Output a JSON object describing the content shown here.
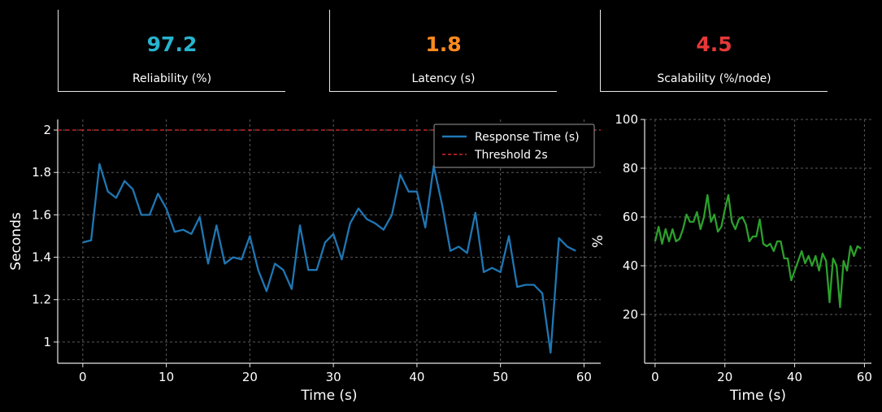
{
  "kpis": [
    {
      "value": "97.2",
      "label": "Reliability (%)",
      "color": "#27b4cf"
    },
    {
      "value": "1.8",
      "label": "Latency (s)",
      "color": "#ff8a1f"
    },
    {
      "value": "4.5",
      "label": "Scalability (%/node)",
      "color": "#e63838"
    }
  ],
  "chart_data": [
    {
      "type": "line",
      "xlabel": "Time (s)",
      "ylabel": "Seconds",
      "xlim": [
        -3,
        62
      ],
      "ylim": [
        0.9,
        2.05
      ],
      "xticks": [
        0,
        10,
        20,
        30,
        40,
        50,
        60
      ],
      "yticks": [
        1.0,
        1.2,
        1.4,
        1.6,
        1.8,
        2.0
      ],
      "grid": true,
      "legend": "top-right",
      "series": [
        {
          "name": "Response Time (s)",
          "color": "#1f77b4",
          "x": [
            0,
            1,
            2,
            3,
            4,
            5,
            6,
            7,
            8,
            9,
            10,
            11,
            12,
            13,
            14,
            15,
            16,
            17,
            18,
            19,
            20,
            21,
            22,
            23,
            24,
            25,
            26,
            27,
            28,
            29,
            30,
            31,
            32,
            33,
            34,
            35,
            36,
            37,
            38,
            39,
            40,
            41,
            42,
            43,
            44,
            45,
            46,
            47,
            48,
            49,
            50,
            51,
            52,
            53,
            54,
            55,
            56,
            57,
            58,
            59
          ],
          "values": [
            1.47,
            1.48,
            1.84,
            1.71,
            1.68,
            1.76,
            1.72,
            1.6,
            1.6,
            1.7,
            1.63,
            1.52,
            1.53,
            1.51,
            1.59,
            1.37,
            1.55,
            1.37,
            1.4,
            1.39,
            1.5,
            1.34,
            1.24,
            1.37,
            1.34,
            1.25,
            1.55,
            1.34,
            1.34,
            1.47,
            1.51,
            1.39,
            1.56,
            1.63,
            1.58,
            1.56,
            1.53,
            1.6,
            1.79,
            1.71,
            1.71,
            1.54,
            1.83,
            1.65,
            1.43,
            1.45,
            1.42,
            1.61,
            1.33,
            1.35,
            1.33,
            1.5,
            1.26,
            1.27,
            1.27,
            1.23,
            0.95,
            1.49,
            1.45,
            1.43
          ]
        }
      ],
      "threshold": {
        "name": "Threshold 2s",
        "value": 2.0,
        "color": "#d62728"
      }
    },
    {
      "type": "line",
      "xlabel": "Time (s)",
      "ylabel": "%",
      "xlim": [
        -3,
        62
      ],
      "ylim": [
        0,
        100
      ],
      "xticks": [
        0,
        20,
        40,
        60
      ],
      "yticks": [
        20,
        40,
        60,
        80,
        100
      ],
      "grid": true,
      "series": [
        {
          "color": "#2ca02c",
          "x": [
            0,
            1,
            2,
            3,
            4,
            5,
            6,
            7,
            8,
            9,
            10,
            11,
            12,
            13,
            14,
            15,
            16,
            17,
            18,
            19,
            20,
            21,
            22,
            23,
            24,
            25,
            26,
            27,
            28,
            29,
            30,
            31,
            32,
            33,
            34,
            35,
            36,
            37,
            38,
            39,
            40,
            41,
            42,
            43,
            44,
            45,
            46,
            47,
            48,
            49,
            50,
            51,
            52,
            53,
            54,
            55,
            56,
            57,
            58,
            59
          ],
          "values": [
            50,
            56,
            49,
            55,
            50,
            55,
            50,
            51,
            55,
            61,
            58,
            58,
            62,
            55,
            60,
            69,
            58,
            61,
            54,
            56,
            63,
            69,
            58,
            55,
            59,
            60,
            57,
            50,
            52,
            52,
            59,
            49,
            48,
            49,
            46,
            50,
            50,
            43,
            43,
            34,
            38,
            42,
            46,
            41,
            44,
            40,
            44,
            38,
            45,
            42,
            25,
            43,
            40,
            23,
            42,
            38,
            48,
            44,
            48,
            47
          ]
        }
      ]
    }
  ]
}
